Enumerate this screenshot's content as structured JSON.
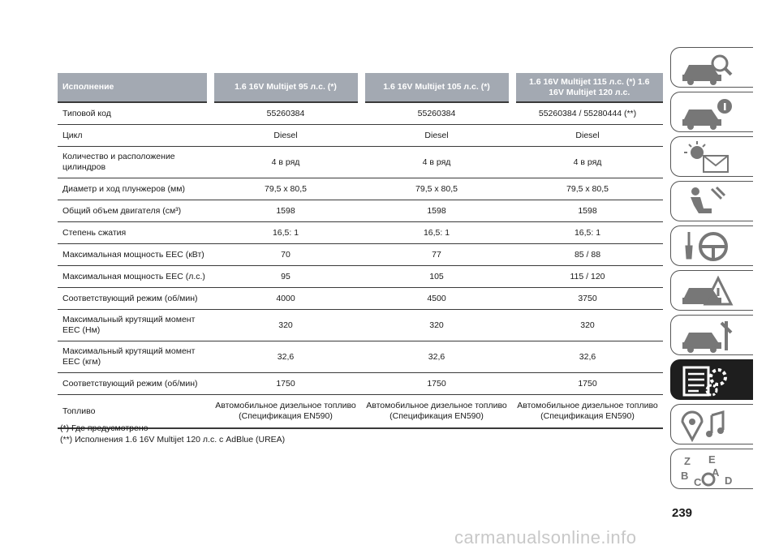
{
  "table": {
    "headers": [
      "Исполнение",
      "1.6 16V Multijet 95 л.с. (*)",
      "1.6 16V Multijet 105 л.с. (*)",
      "1.6 16V Multijet 115 л.с. (*) 1.6 16V Multijet 120 л.с."
    ],
    "rows": [
      {
        "label": "Типовой код",
        "values": [
          "55260384",
          "55260384",
          "55260384 / 55280444 (**)"
        ]
      },
      {
        "label": "Цикл",
        "values": [
          "Diesel",
          "Diesel",
          "Diesel"
        ]
      },
      {
        "label": "Количество и расположение цилиндров",
        "values": [
          "4 в ряд",
          "4 в ряд",
          "4 в ряд"
        ]
      },
      {
        "label": "Диаметр и ход плунжеров (мм)",
        "values": [
          "79,5 x 80,5",
          "79,5 x 80,5",
          "79,5 x 80,5"
        ]
      },
      {
        "label": "Общий объем двигателя (см³)",
        "values": [
          "1598",
          "1598",
          "1598"
        ]
      },
      {
        "label": "Степень сжатия",
        "values": [
          "16,5: 1",
          "16,5: 1",
          "16,5: 1"
        ]
      },
      {
        "label": "Максимальная мощность ЕЕС (кВт)",
        "values": [
          "70",
          "77",
          "85 / 88"
        ]
      },
      {
        "label": "Максимальная мощность ЕЕС (л.с.)",
        "values": [
          "95",
          "105",
          "115 / 120"
        ]
      },
      {
        "label": "Соответствующий режим (об/мин)",
        "values": [
          "4000",
          "4500",
          "3750"
        ]
      },
      {
        "label": "Максимальный крутящий момент ЕЕС (Нм)",
        "values": [
          "320",
          "320",
          "320"
        ]
      },
      {
        "label": "Максимальный крутящий момент ЕЕС (кгм)",
        "values": [
          "32,6",
          "32,6",
          "32,6"
        ]
      },
      {
        "label": "Соответствующий режим (об/мин)",
        "values": [
          "1750",
          "1750",
          "1750"
        ]
      },
      {
        "label": "Топливо",
        "values": [
          "Автомобильное дизельное топливо (Спецификация EN590)",
          "Автомобильное дизельное топливо (Спецификация EN590)",
          "Автомобильное дизельное топливо (Спецификация EN590)"
        ]
      }
    ]
  },
  "footnotes": [
    "(*) Где предусмотрено",
    "(**) Исполнения 1.6 16V Multijet 120 л.с. с AdBlue (UREA)"
  ],
  "page_number": "239",
  "watermark": "carmanualsonline.info",
  "sidebar_tabs": [
    {
      "icon": "car-dashboard-icon",
      "active": false
    },
    {
      "icon": "car-info-icon",
      "active": false
    },
    {
      "icon": "warning-light-icon",
      "active": false
    },
    {
      "icon": "airbag-seat-icon",
      "active": false
    },
    {
      "icon": "steering-wheel-icon",
      "active": false
    },
    {
      "icon": "car-emergency-icon",
      "active": false
    },
    {
      "icon": "car-maintenance-icon",
      "active": false
    },
    {
      "icon": "technical-data-icon",
      "active": true
    },
    {
      "icon": "multimedia-icon",
      "active": false
    },
    {
      "icon": "alphabetical-index-icon",
      "active": false
    }
  ],
  "colors": {
    "header_bg": "#a3a9b2",
    "active_tab": "#1e1e1e"
  }
}
